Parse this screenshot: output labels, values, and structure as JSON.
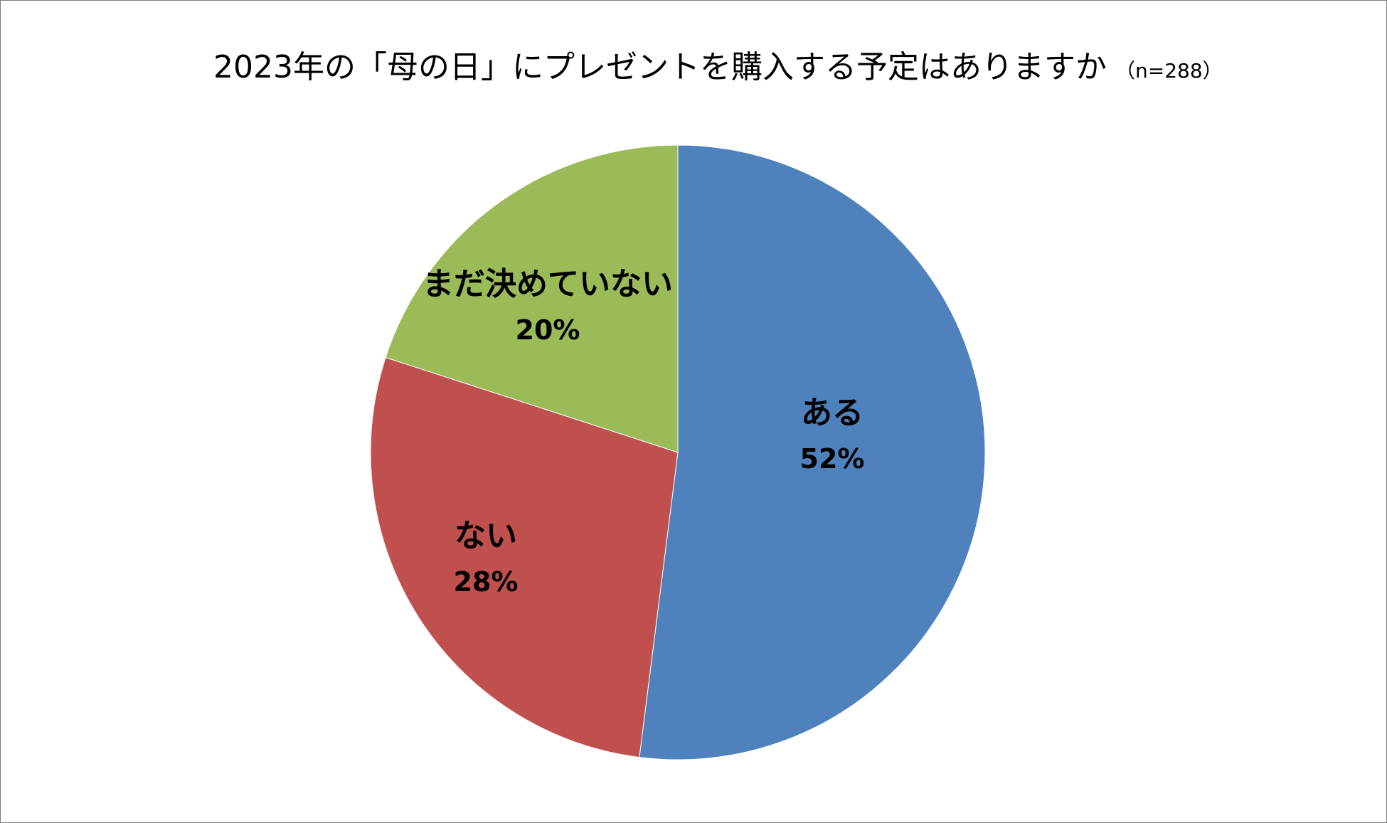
{
  "chart_data": {
    "type": "pie",
    "title": "2023年の「母の日」にプレゼントを購入する予定はありますか",
    "subtitle": "（n=288）",
    "slices": [
      {
        "label": "ある",
        "value": 52,
        "value_label": "52%",
        "color": "#4f81bd"
      },
      {
        "label": "ない",
        "value": 28,
        "value_label": "28%",
        "color": "#c0504d"
      },
      {
        "label": "まだ決めていない",
        "value": 20,
        "value_label": "20%",
        "color": "#9bbb59"
      }
    ],
    "start_angle": "12 o'clock",
    "direction": "clockwise",
    "legend": "none"
  }
}
